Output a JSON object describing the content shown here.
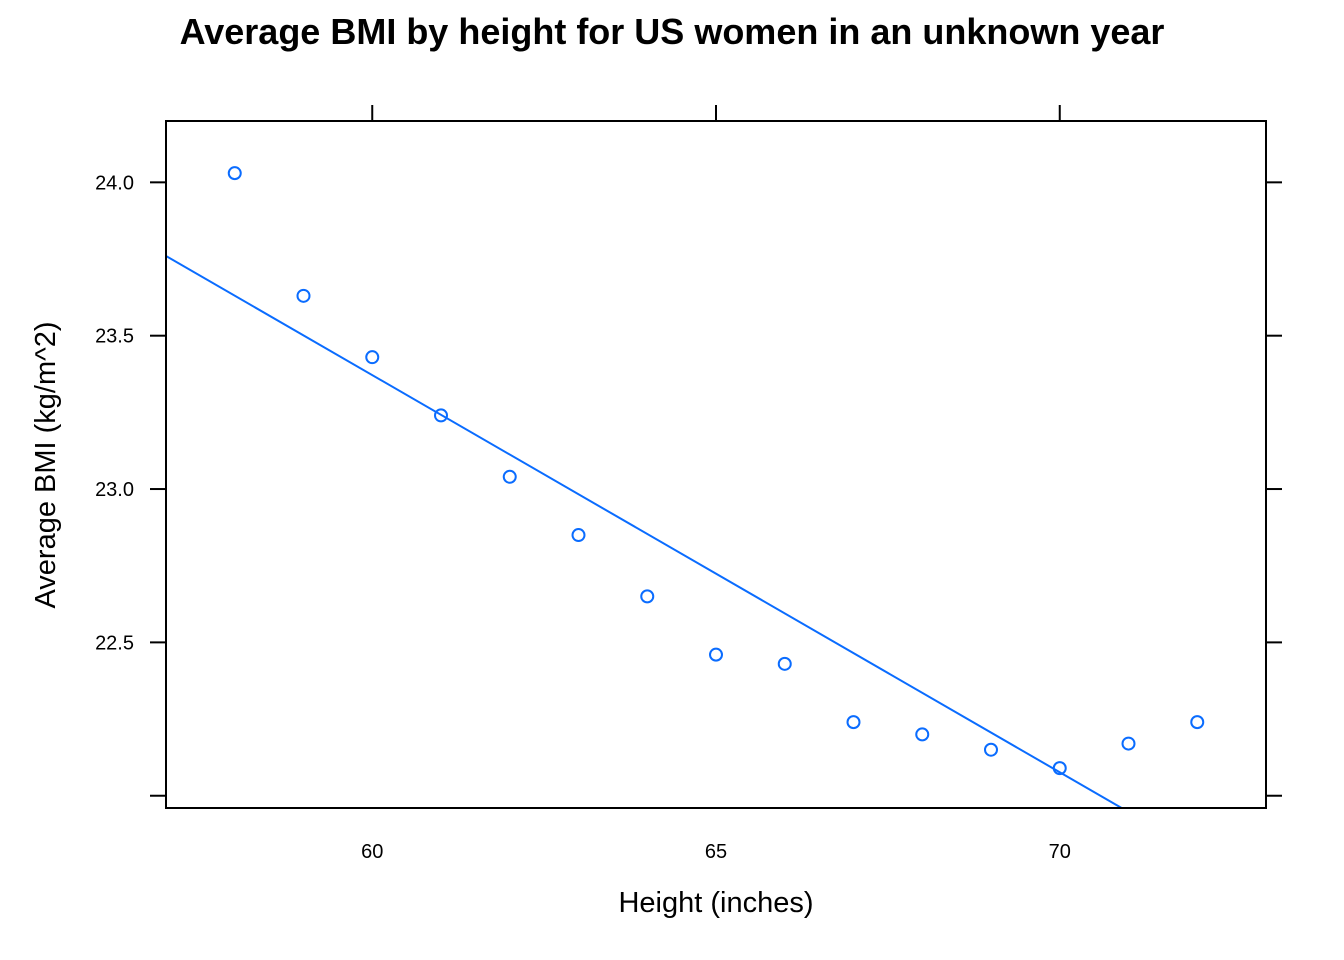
{
  "chart_data": {
    "type": "scatter",
    "title": "Average BMI by height for US women in an unknown year",
    "xlabel": "Height (inches)",
    "ylabel": "Average BMI (kg/m^2)",
    "xlim": [
      57,
      73
    ],
    "ylim": [
      21.96,
      24.2
    ],
    "x_ticks": [
      60,
      65,
      70
    ],
    "x_tick_labels": [
      "60",
      "65",
      "70"
    ],
    "y_ticks": [
      22.0,
      22.5,
      23.0,
      23.5,
      24.0
    ],
    "y_tick_labels": [
      "",
      "22.5",
      "23.0",
      "23.5",
      "24.0"
    ],
    "grid": false,
    "marker": "open-circle",
    "color": "#0a6cff",
    "series": [
      {
        "x": [
          58,
          59,
          60,
          61,
          62,
          63,
          64,
          65,
          66,
          67,
          68,
          69,
          70,
          71,
          72
        ],
        "y": [
          24.03,
          23.63,
          23.43,
          23.24,
          23.04,
          22.85,
          22.65,
          22.46,
          22.43,
          22.24,
          22.2,
          22.15,
          22.09,
          22.17,
          22.24
        ]
      }
    ],
    "fit_line": {
      "type": "linear regression",
      "x": [
        57,
        70.9
      ],
      "y": [
        23.76,
        21.96
      ]
    }
  }
}
